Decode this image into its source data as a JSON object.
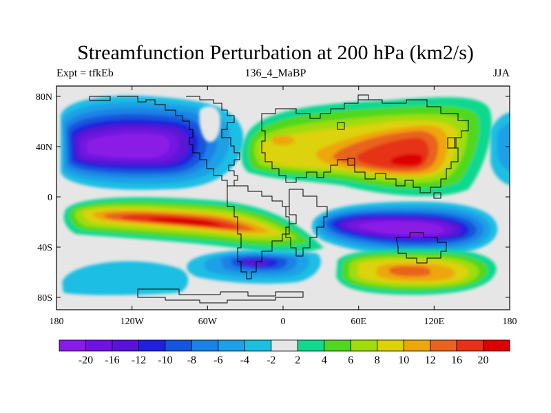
{
  "title": "Streamfunction Perturbation at 200 hPa (km2/s)",
  "left_string": "Expt = tfkEb",
  "center_string": "136_4_MaBP",
  "right_string": "JJA",
  "map": {
    "lat_ticks": [
      "80N",
      "40N",
      "0",
      "40S",
      "80S"
    ],
    "lon_ticks": [
      "180",
      "120W",
      "60W",
      "0",
      "60E",
      "120E",
      "180"
    ],
    "xlim": [
      -180,
      180
    ],
    "ylim": [
      -90,
      90
    ],
    "projection": "cylindrical equidistant"
  },
  "colorbar": {
    "labels": [
      "-20",
      "-16",
      "-12",
      "-10",
      "-8",
      "-6",
      "-4",
      "-2",
      "2",
      "4",
      "6",
      "8",
      "10",
      "12",
      "16",
      "20"
    ],
    "colors": [
      "#8a1ae6",
      "#7212e0",
      "#5a12d6",
      "#2020dc",
      "#1456dc",
      "#1a82e6",
      "#1ea0e6",
      "#1ebee4",
      "#e6e6e6",
      "#10d890",
      "#50d81e",
      "#a0dc10",
      "#dcd20a",
      "#eea60a",
      "#e8641e",
      "#e63214",
      "#dc0000"
    ]
  },
  "chart_data": {
    "type": "contour-map",
    "units": "km2/s",
    "level": "200 hPa",
    "season": "JJA",
    "levels": [
      -20,
      -16,
      -12,
      -10,
      -8,
      -6,
      -4,
      -2,
      2,
      4,
      6,
      8,
      10,
      12,
      16,
      20
    ],
    "features": [
      {
        "sign": "negative",
        "center_lon": -125,
        "center_lat": 40,
        "peak": -20
      },
      {
        "sign": "negative",
        "center_lon": 105,
        "center_lat": -25,
        "peak": -20
      },
      {
        "sign": "negative",
        "center_lon": -25,
        "center_lat": -55,
        "peak": -12
      },
      {
        "sign": "negative",
        "center_lon": 170,
        "center_lat": 40,
        "peak": -6
      },
      {
        "sign": "positive",
        "center_lon": 95,
        "center_lat": 30,
        "peak": 20
      },
      {
        "sign": "positive",
        "center_lon": -75,
        "center_lat": -20,
        "peak": 20
      },
      {
        "sign": "positive",
        "center_lon": 85,
        "center_lat": -58,
        "peak": 10
      },
      {
        "sign": "positive",
        "center_lon": 0,
        "center_lat": 40,
        "peak": 10
      }
    ]
  }
}
